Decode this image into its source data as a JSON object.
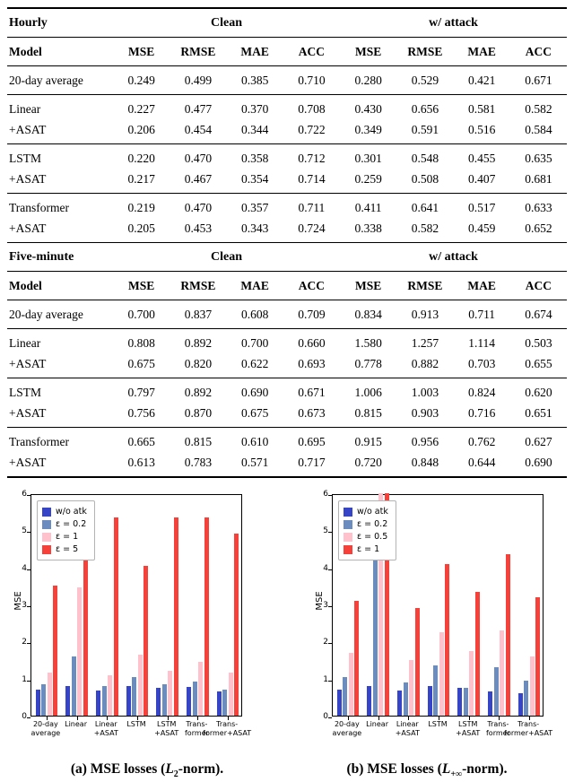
{
  "tables": [
    {
      "title": "Hourly",
      "span_headers": [
        "Clean",
        "w/ attack"
      ],
      "model_col": "Model",
      "metric_cols": [
        "MSE",
        "RMSE",
        "MAE",
        "ACC",
        "MSE",
        "RMSE",
        "MAE",
        "ACC"
      ],
      "groups": [
        [
          {
            "model": "20-day average",
            "values": [
              "0.249",
              "0.499",
              "0.385",
              "0.710",
              "0.280",
              "0.529",
              "0.421",
              "0.671"
            ]
          }
        ],
        [
          {
            "model": "Linear",
            "values": [
              "0.227",
              "0.477",
              "0.370",
              "0.708",
              "0.430",
              "0.656",
              "0.581",
              "0.582"
            ]
          },
          {
            "model": "+ASAT",
            "values": [
              "0.206",
              "0.454",
              "0.344",
              "0.722",
              "0.349",
              "0.591",
              "0.516",
              "0.584"
            ]
          }
        ],
        [
          {
            "model": "LSTM",
            "values": [
              "0.220",
              "0.470",
              "0.358",
              "0.712",
              "0.301",
              "0.548",
              "0.455",
              "0.635"
            ]
          },
          {
            "model": "+ASAT",
            "values": [
              "0.217",
              "0.467",
              "0.354",
              "0.714",
              "0.259",
              "0.508",
              "0.407",
              "0.681"
            ]
          }
        ],
        [
          {
            "model": "Transformer",
            "values": [
              "0.219",
              "0.470",
              "0.357",
              "0.711",
              "0.411",
              "0.641",
              "0.517",
              "0.633"
            ]
          },
          {
            "model": "+ASAT",
            "values": [
              "0.205",
              "0.453",
              "0.343",
              "0.724",
              "0.338",
              "0.582",
              "0.459",
              "0.652"
            ]
          }
        ]
      ]
    },
    {
      "title": "Five-minute",
      "span_headers": [
        "Clean",
        "w/ attack"
      ],
      "model_col": "Model",
      "metric_cols": [
        "MSE",
        "RMSE",
        "MAE",
        "ACC",
        "MSE",
        "RMSE",
        "MAE",
        "ACC"
      ],
      "groups": [
        [
          {
            "model": "20-day average",
            "values": [
              "0.700",
              "0.837",
              "0.608",
              "0.709",
              "0.834",
              "0.913",
              "0.711",
              "0.674"
            ]
          }
        ],
        [
          {
            "model": "Linear",
            "values": [
              "0.808",
              "0.892",
              "0.700",
              "0.660",
              "1.580",
              "1.257",
              "1.114",
              "0.503"
            ]
          },
          {
            "model": "+ASAT",
            "values": [
              "0.675",
              "0.820",
              "0.622",
              "0.693",
              "0.778",
              "0.882",
              "0.703",
              "0.655"
            ]
          }
        ],
        [
          {
            "model": "LSTM",
            "values": [
              "0.797",
              "0.892",
              "0.690",
              "0.671",
              "1.006",
              "1.003",
              "0.824",
              "0.620"
            ]
          },
          {
            "model": "+ASAT",
            "values": [
              "0.756",
              "0.870",
              "0.675",
              "0.673",
              "0.815",
              "0.903",
              "0.716",
              "0.651"
            ]
          }
        ],
        [
          {
            "model": "Transformer",
            "values": [
              "0.665",
              "0.815",
              "0.610",
              "0.695",
              "0.915",
              "0.956",
              "0.762",
              "0.627"
            ]
          },
          {
            "model": "+ASAT",
            "values": [
              "0.613",
              "0.783",
              "0.571",
              "0.717",
              "0.720",
              "0.848",
              "0.644",
              "0.690"
            ]
          }
        ]
      ]
    }
  ],
  "chart_data": [
    {
      "type": "bar",
      "title": "",
      "xlabel": "",
      "ylabel": "MSE",
      "ylim": [
        0,
        6
      ],
      "yticks": [
        0,
        1,
        2,
        3,
        4,
        5,
        6
      ],
      "grid": false,
      "legend_position": "upper left",
      "categories": [
        "20-day\naverage",
        "Linear",
        "Linear\n+ASAT",
        "LSTM",
        "LSTM\n+ASAT",
        "Trans-\nformer",
        "Trans-\nformer+ASAT"
      ],
      "series": [
        {
          "name": "w/o atk",
          "color": "#3645c8",
          "values": [
            0.7,
            0.8,
            0.68,
            0.8,
            0.76,
            0.78,
            0.65
          ]
        },
        {
          "name": "ε = 0.2",
          "color": "#6a8cbe",
          "values": [
            0.85,
            1.6,
            0.8,
            1.05,
            0.85,
            0.92,
            0.7
          ]
        },
        {
          "name": "ε = 1",
          "color": "#ffc2cc",
          "values": [
            1.15,
            3.45,
            1.1,
            1.65,
            1.2,
            1.45,
            1.15
          ]
        },
        {
          "name": "ε = 5",
          "color": "#f6403a",
          "values": [
            3.5,
            5.3,
            5.35,
            4.05,
            5.35,
            5.35,
            4.9
          ]
        }
      ]
    },
    {
      "type": "bar",
      "title": "",
      "xlabel": "",
      "ylabel": "MSE",
      "ylim": [
        0,
        6
      ],
      "yticks": [
        0,
        1,
        2,
        3,
        4,
        5,
        6
      ],
      "grid": false,
      "legend_position": "upper left",
      "categories": [
        "20-day\naverage",
        "Linear",
        "Linear\n+ASAT",
        "LSTM",
        "LSTM\n+ASAT",
        "Trans-\nformer",
        "Trans-\nformer+ASAT"
      ],
      "series": [
        {
          "name": "w/o atk",
          "color": "#3645c8",
          "values": [
            0.7,
            0.8,
            0.68,
            0.8,
            0.76,
            0.65,
            0.6
          ]
        },
        {
          "name": "ε = 0.2",
          "color": "#6a8cbe",
          "values": [
            1.05,
            5.15,
            0.9,
            1.35,
            0.75,
            1.3,
            0.95
          ]
        },
        {
          "name": "ε = 0.5",
          "color": "#ffc2cc",
          "values": [
            1.7,
            6.0,
            1.5,
            2.25,
            1.75,
            2.3,
            1.6
          ]
        },
        {
          "name": "ε = 1",
          "color": "#f6403a",
          "values": [
            3.1,
            6.0,
            2.9,
            4.1,
            3.35,
            4.35,
            3.2
          ]
        }
      ]
    }
  ],
  "captions": [
    {
      "pre": "(a) MSE losses (",
      "var": "L",
      "sub": "2",
      "post": "-norm)."
    },
    {
      "pre": "(b) MSE losses (",
      "var": "L",
      "sub": "+∞",
      "post": "-norm)."
    }
  ]
}
